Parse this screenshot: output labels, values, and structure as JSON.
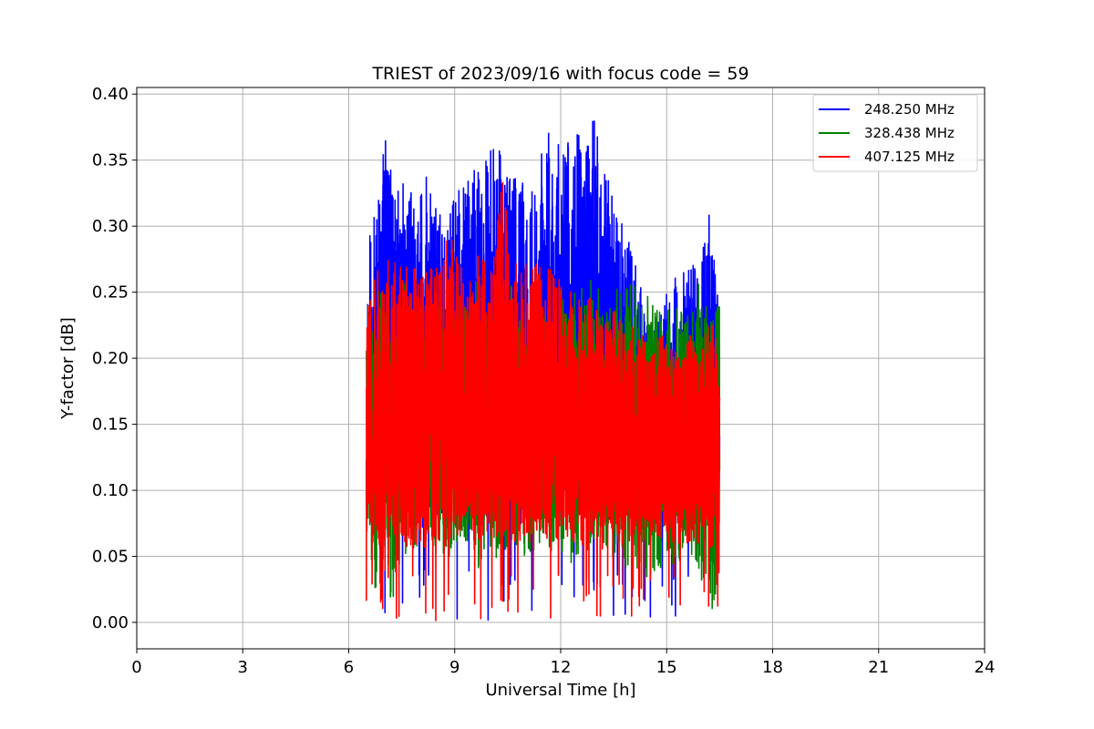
{
  "chart_data": {
    "type": "line",
    "title": "TRIEST of 2023/09/16 with focus code = 59",
    "xlabel": "Universal Time [h]",
    "ylabel": "Y-factor [dB]",
    "xlim": [
      0,
      24
    ],
    "ylim": [
      -0.02,
      0.405
    ],
    "xticks": [
      0,
      3,
      6,
      9,
      12,
      15,
      18,
      21,
      24
    ],
    "yticks": [
      0.0,
      0.05,
      0.1,
      0.15,
      0.2,
      0.25,
      0.3,
      0.35,
      0.4
    ],
    "ytick_labels": [
      "0.00",
      "0.05",
      "0.10",
      "0.15",
      "0.20",
      "0.25",
      "0.30",
      "0.35",
      "0.40"
    ],
    "grid": true,
    "legend_position": "top-right",
    "time_range": [
      6.5,
      16.5
    ],
    "series": [
      {
        "name": "248.250 MHz",
        "color": "#0000ff",
        "x": [
          6.5,
          6.7,
          6.9,
          7.0,
          7.3,
          7.6,
          7.9,
          8.2,
          8.5,
          8.8,
          9.0,
          9.3,
          9.6,
          9.9,
          10.2,
          10.4,
          10.8,
          11.2,
          11.6,
          11.9,
          12.3,
          12.6,
          12.9,
          13.2,
          13.6,
          14.0,
          14.4,
          14.6,
          14.9,
          15.2,
          15.6,
          16.0,
          16.2,
          16.4,
          16.5
        ],
        "values": [
          0.29,
          0.305,
          0.345,
          0.372,
          0.33,
          0.345,
          0.31,
          0.343,
          0.31,
          0.305,
          0.325,
          0.33,
          0.347,
          0.35,
          0.372,
          0.34,
          0.335,
          0.33,
          0.382,
          0.38,
          0.37,
          0.375,
          0.386,
          0.35,
          0.31,
          0.29,
          0.24,
          0.22,
          0.25,
          0.26,
          0.27,
          0.28,
          0.31,
          0.28,
          0.21
        ]
      },
      {
        "name": "328.438 MHz",
        "color": "#008000",
        "x": [
          6.5,
          6.6,
          6.8,
          7.0,
          7.2,
          7.5,
          7.8,
          8.1,
          8.4,
          8.7,
          9.0,
          9.3,
          9.6,
          9.9,
          10.2,
          10.5,
          10.8,
          11.2,
          11.6,
          12.0,
          12.3,
          12.6,
          12.9,
          13.2,
          13.5,
          13.8,
          14.1,
          14.4,
          14.7,
          15.0,
          15.3,
          15.6,
          15.9,
          16.1,
          16.3,
          16.5
        ],
        "values": [
          0.09,
          0.058,
          0.01,
          0.05,
          0.013,
          0.045,
          0.055,
          0.06,
          0.05,
          0.05,
          0.045,
          0.06,
          0.035,
          0.06,
          0.045,
          0.05,
          0.055,
          0.045,
          0.05,
          0.055,
          0.04,
          0.045,
          0.06,
          0.05,
          0.045,
          0.035,
          0.04,
          0.03,
          0.035,
          0.05,
          0.04,
          0.05,
          0.035,
          0.022,
          0.0,
          0.05
        ]
      },
      {
        "name": "407.125 MHz",
        "color": "#ff0000",
        "x": [
          6.5,
          6.8,
          7.1,
          7.4,
          7.7,
          8.0,
          8.3,
          8.6,
          8.9,
          9.2,
          9.5,
          9.8,
          10.1,
          10.35,
          10.6,
          10.9,
          11.2,
          11.5,
          11.8,
          12.1,
          12.4,
          12.7,
          13.0,
          13.3,
          13.6,
          13.9,
          14.2,
          14.5,
          14.8,
          15.1,
          15.4,
          15.7,
          16.0,
          16.2,
          16.4,
          16.5
        ],
        "values": [
          0.24,
          0.27,
          0.28,
          0.27,
          0.28,
          0.26,
          0.27,
          0.28,
          0.3,
          0.27,
          0.26,
          0.3,
          0.28,
          0.342,
          0.28,
          0.27,
          0.28,
          0.265,
          0.27,
          0.26,
          0.25,
          0.25,
          0.24,
          0.23,
          0.24,
          0.22,
          0.23,
          0.2,
          0.22,
          0.21,
          0.2,
          0.22,
          0.21,
          0.23,
          0.22,
          0.2
        ]
      }
    ]
  }
}
